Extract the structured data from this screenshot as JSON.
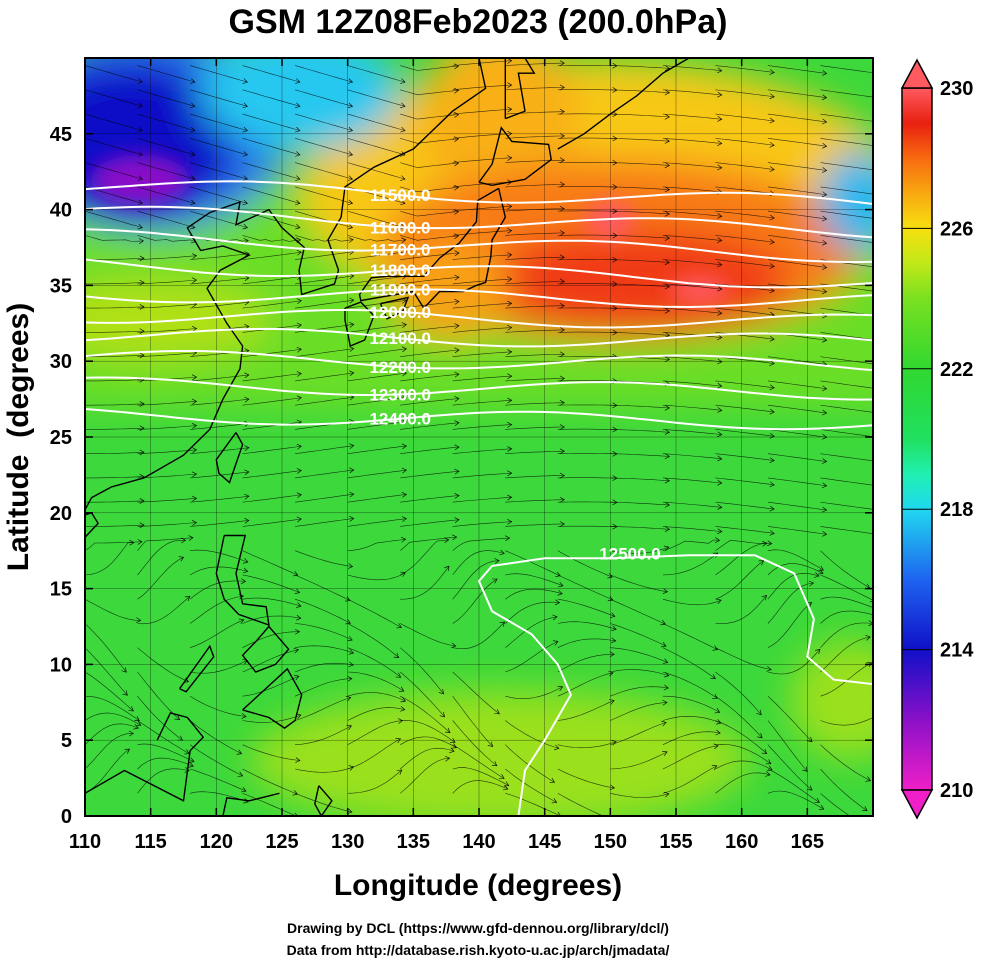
{
  "title": "GSM 12Z08Feb2023 (200.0hPa)",
  "xlabel": "Longitude (degrees)",
  "ylabel": "Latitude  (degrees)",
  "credit_line1": "Drawing by DCL (https://www.gfd-dennou.org/library/dcl/)",
  "credit_line2": "Data from http://database.rish.kyoto-u.ac.jp/arch/jmadata/",
  "map": {
    "lon_range": [
      110,
      170
    ],
    "lat_range": [
      0,
      50
    ],
    "x_ticks": [
      "110",
      "115",
      "120",
      "125",
      "130",
      "135",
      "140",
      "145",
      "150",
      "155",
      "160",
      "165"
    ],
    "y_ticks": [
      "0",
      "5",
      "10",
      "15",
      "20",
      "25",
      "30",
      "35",
      "40",
      "45"
    ],
    "colorbar": {
      "min": 210,
      "max": 230,
      "labels": [
        "230",
        "226",
        "222",
        "218",
        "214",
        "210"
      ],
      "stops": [
        {
          "value": 210,
          "color": "#f01fc8"
        },
        {
          "value": 212,
          "color": "#8a10c8"
        },
        {
          "value": 214,
          "color": "#1010c8"
        },
        {
          "value": 216,
          "color": "#1e64f0"
        },
        {
          "value": 218,
          "color": "#20d8f0"
        },
        {
          "value": 219,
          "color": "#20f0b0"
        },
        {
          "value": 220,
          "color": "#20e060"
        },
        {
          "value": 222,
          "color": "#30d830"
        },
        {
          "value": 224,
          "color": "#7ae020"
        },
        {
          "value": 225,
          "color": "#c0e818"
        },
        {
          "value": 226,
          "color": "#f8e010"
        },
        {
          "value": 227,
          "color": "#f8a810"
        },
        {
          "value": 228,
          "color": "#f86a10"
        },
        {
          "value": 229,
          "color": "#e82010"
        },
        {
          "value": 230,
          "color": "#ff5a60"
        }
      ]
    },
    "contours": [
      {
        "label": "11500.0",
        "lat": 41.0
      },
      {
        "label": "11600.0",
        "lat": 39.2
      },
      {
        "label": "11700.0",
        "lat": 37.6
      },
      {
        "label": "11800.0",
        "lat": 35.8
      },
      {
        "label": "11900.0",
        "lat": 34.2
      },
      {
        "label": "12000.0",
        "lat": 32.8
      },
      {
        "label": "12100.0",
        "lat": 31.5
      },
      {
        "label": "12200.0",
        "lat": 30.0
      },
      {
        "label": "12300.0",
        "lat": 28.2
      },
      {
        "label": "12400.0",
        "lat": 26.2
      },
      {
        "label": "12500.0",
        "lat": 17.0
      }
    ]
  }
}
